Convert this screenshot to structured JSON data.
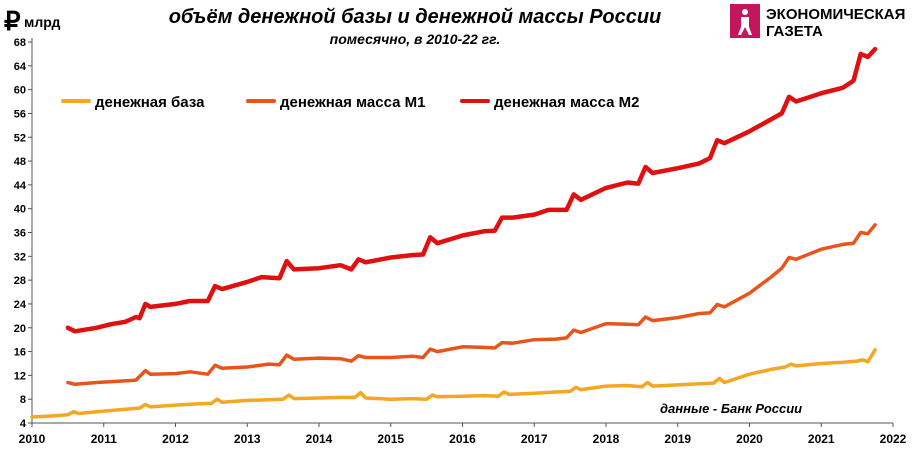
{
  "chart_data": {
    "type": "line",
    "title": "объём денежной базы и денежной массы России",
    "subtitle": "помесячно, в 2010-22 гг.",
    "ylabel_symbol": "₽",
    "ylabel": "млрд",
    "annotation": "данные - Банк России",
    "logo": {
      "line1": "ЭКОНОМИЧЕСКАЯ",
      "line2": "ГАЗЕТА"
    },
    "xlim": [
      2010,
      2022
    ],
    "xticks": [
      2010,
      2011,
      2012,
      2013,
      2014,
      2015,
      2016,
      2017,
      2018,
      2019,
      2020,
      2021,
      2022
    ],
    "ylim": [
      4,
      68
    ],
    "yticks": [
      4,
      8,
      12,
      16,
      20,
      24,
      28,
      32,
      36,
      40,
      44,
      48,
      52,
      56,
      60,
      64,
      68
    ],
    "grid": false,
    "legend": "top-left",
    "series": [
      {
        "name": "денежная база",
        "color": "#f5a623",
        "x": [
          2010.0,
          2010.3,
          2010.5,
          2010.58,
          2010.65,
          2011.0,
          2011.3,
          2011.5,
          2011.58,
          2011.65,
          2012.0,
          2012.3,
          2012.5,
          2012.58,
          2012.65,
          2013.0,
          2013.3,
          2013.5,
          2013.58,
          2013.65,
          2014.0,
          2014.3,
          2014.5,
          2014.58,
          2014.65,
          2015.0,
          2015.3,
          2015.5,
          2015.58,
          2015.65,
          2016.0,
          2016.3,
          2016.5,
          2016.58,
          2016.65,
          2017.0,
          2017.3,
          2017.5,
          2017.58,
          2017.65,
          2018.0,
          2018.3,
          2018.5,
          2018.58,
          2018.65,
          2019.0,
          2019.3,
          2019.5,
          2019.58,
          2019.65,
          2020.0,
          2020.3,
          2020.5,
          2020.58,
          2020.65,
          2021.0,
          2021.3,
          2021.5,
          2021.58,
          2021.65,
          2021.75
        ],
        "values": [
          5.0,
          5.2,
          5.4,
          5.9,
          5.6,
          6.0,
          6.3,
          6.5,
          7.1,
          6.7,
          7.0,
          7.2,
          7.3,
          8.0,
          7.5,
          7.8,
          7.9,
          8.0,
          8.7,
          8.1,
          8.2,
          8.3,
          8.3,
          9.1,
          8.2,
          8.0,
          8.1,
          8.0,
          8.7,
          8.4,
          8.5,
          8.6,
          8.5,
          9.2,
          8.8,
          9.0,
          9.2,
          9.3,
          10.0,
          9.6,
          10.2,
          10.3,
          10.1,
          10.8,
          10.2,
          10.4,
          10.6,
          10.7,
          11.5,
          10.8,
          12.2,
          13.0,
          13.4,
          13.9,
          13.6,
          14.0,
          14.2,
          14.4,
          14.6,
          14.3,
          16.3
        ]
      },
      {
        "name": "денежная масса М1",
        "color": "#e8541c",
        "x": [
          2010.5,
          2010.6,
          2010.9,
          2011.2,
          2011.45,
          2011.58,
          2011.65,
          2012.0,
          2012.2,
          2012.45,
          2012.55,
          2012.65,
          2013.0,
          2013.3,
          2013.45,
          2013.55,
          2013.65,
          2014.0,
          2014.3,
          2014.45,
          2014.55,
          2014.65,
          2015.0,
          2015.3,
          2015.45,
          2015.55,
          2015.65,
          2016.0,
          2016.3,
          2016.45,
          2016.55,
          2016.7,
          2017.0,
          2017.3,
          2017.45,
          2017.55,
          2017.65,
          2018.0,
          2018.3,
          2018.45,
          2018.55,
          2018.65,
          2019.0,
          2019.3,
          2019.45,
          2019.55,
          2019.65,
          2020.0,
          2020.3,
          2020.45,
          2020.55,
          2020.65,
          2021.0,
          2021.3,
          2021.45,
          2021.55,
          2021.65,
          2021.75
        ],
        "values": [
          10.8,
          10.5,
          10.8,
          11.0,
          11.2,
          12.8,
          12.2,
          12.3,
          12.6,
          12.2,
          13.7,
          13.2,
          13.4,
          13.9,
          13.8,
          15.4,
          14.7,
          14.9,
          14.8,
          14.4,
          15.3,
          15.0,
          15.0,
          15.2,
          15.0,
          16.4,
          16.0,
          16.8,
          16.7,
          16.6,
          17.5,
          17.4,
          18.0,
          18.1,
          18.3,
          19.6,
          19.2,
          20.7,
          20.6,
          20.5,
          21.8,
          21.2,
          21.7,
          22.4,
          22.5,
          23.9,
          23.5,
          25.8,
          28.5,
          30.0,
          31.8,
          31.5,
          33.2,
          34.0,
          34.2,
          36.0,
          35.8,
          37.3
        ]
      },
      {
        "name": "денежная масса М2",
        "color": "#e01010",
        "x": [
          2010.5,
          2010.6,
          2010.9,
          2011.1,
          2011.3,
          2011.45,
          2011.5,
          2011.58,
          2011.65,
          2012.0,
          2012.2,
          2012.45,
          2012.55,
          2012.65,
          2013.0,
          2013.2,
          2013.45,
          2013.55,
          2013.65,
          2014.0,
          2014.3,
          2014.45,
          2014.55,
          2014.65,
          2015.0,
          2015.3,
          2015.45,
          2015.55,
          2015.65,
          2016.0,
          2016.3,
          2016.45,
          2016.55,
          2016.7,
          2017.0,
          2017.2,
          2017.45,
          2017.55,
          2017.65,
          2018.0,
          2018.3,
          2018.45,
          2018.55,
          2018.65,
          2019.0,
          2019.3,
          2019.45,
          2019.55,
          2019.65,
          2020.0,
          2020.3,
          2020.45,
          2020.55,
          2020.65,
          2021.0,
          2021.3,
          2021.45,
          2021.55,
          2021.65,
          2021.75
        ],
        "values": [
          20.0,
          19.4,
          20.0,
          20.6,
          21.0,
          21.8,
          21.6,
          24.0,
          23.5,
          24.0,
          24.5,
          24.5,
          27.0,
          26.5,
          27.7,
          28.5,
          28.3,
          31.2,
          29.8,
          30.0,
          30.5,
          29.8,
          31.5,
          31.0,
          31.8,
          32.2,
          32.3,
          35.2,
          34.2,
          35.5,
          36.2,
          36.3,
          38.5,
          38.5,
          39.0,
          39.8,
          39.8,
          42.4,
          41.5,
          43.5,
          44.4,
          44.2,
          47.0,
          46.0,
          46.8,
          47.6,
          48.5,
          51.5,
          51.0,
          53.0,
          55.0,
          56.0,
          58.8,
          58.0,
          59.4,
          60.3,
          61.5,
          66.0,
          65.5,
          66.8
        ]
      }
    ]
  }
}
